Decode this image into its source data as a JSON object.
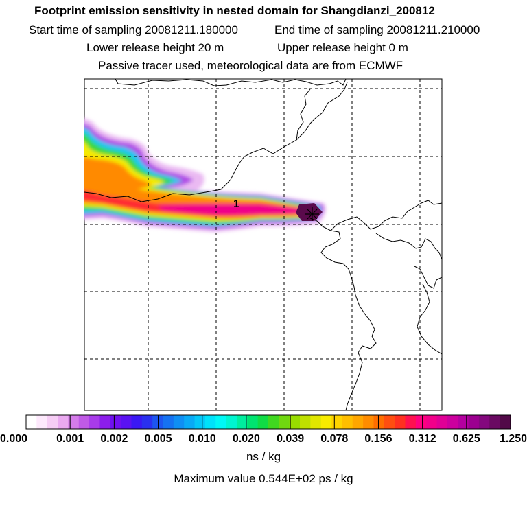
{
  "header": {
    "title": "Footprint emission sensitivity in nested domain for Shangdianzi_200812",
    "start_label": "Start time of sampling 20081211.180000",
    "end_label": "End time of sampling 20081211.210000",
    "lower_label": "Lower release height   20 m",
    "upper_label": "Upper release height    0 m",
    "tracer_label": "Passive tracer used, meteorological data are from ECMWF"
  },
  "map": {
    "release_marker_label": "1"
  },
  "colorbar": {
    "tick_labels": [
      "0.000",
      "0.001",
      "0.002",
      "0.005",
      "0.010",
      "0.020",
      "0.039",
      "0.078",
      "0.156",
      "0.312",
      "0.625",
      "1.250"
    ],
    "colors": [
      "#ffffff",
      "#fde9fc",
      "#f6cdf5",
      "#eaaaf0",
      "#d57cea",
      "#c05ae6",
      "#a83bea",
      "#8c1eeb",
      "#7010f0",
      "#5a12f2",
      "#3a18f4",
      "#2a30f0",
      "#1d55f0",
      "#1572f2",
      "#0f8ff4",
      "#09aaf6",
      "#04c7f8",
      "#00e2fb",
      "#00f8f6",
      "#00f5d0",
      "#00ee9e",
      "#00e470",
      "#10dc45",
      "#40d820",
      "#70d810",
      "#98dc00",
      "#bfe000",
      "#e0e600",
      "#f8ec00",
      "#ffd400",
      "#ffbe00",
      "#ffa600",
      "#ff8c00",
      "#ff6e00",
      "#ff4e10",
      "#ff3020",
      "#ff1050",
      "#ff0080",
      "#f2008a",
      "#e00096",
      "#cc009e",
      "#b400a0",
      "#9c0090",
      "#84087e",
      "#6a0a62",
      "#520a48"
    ],
    "unit": "ns / kg"
  },
  "footer": {
    "max_value": "Maximum value  0.544E+02 ps / kg"
  }
}
